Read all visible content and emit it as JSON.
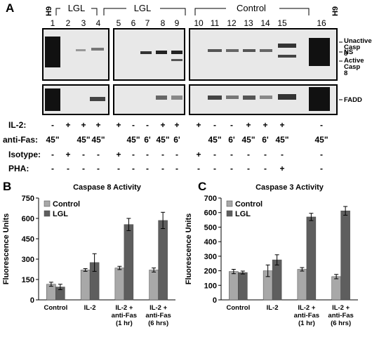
{
  "panelA": {
    "letter": "A",
    "lanes": [
      "1",
      "2",
      "3",
      "4",
      "5",
      "6",
      "7",
      "8",
      "9",
      "10",
      "11",
      "12",
      "13",
      "14",
      "15",
      "16"
    ],
    "h9_left": "H9",
    "h9_right": "H9",
    "groups": [
      "LGL",
      "LGL",
      "Control"
    ],
    "band_labels": [
      "Unactive Casp 8",
      "NS",
      "Active Casp 8",
      "FADD"
    ],
    "rows": [
      {
        "label": "IL-2:",
        "cells": [
          "-",
          "+",
          "+",
          "+",
          "+",
          "-",
          "-",
          "+",
          "+",
          "+",
          "-",
          "-",
          "+",
          "+",
          "+",
          "-"
        ]
      },
      {
        "label": "anti-Fas:",
        "cells": [
          "45\"",
          "",
          "45\"",
          "45\"",
          "",
          "45\"",
          "6'",
          "45\"",
          "6'",
          "",
          "45\"",
          "6'",
          "45\"",
          "6'",
          "45\"",
          "45\""
        ]
      },
      {
        "label": "Isotype:",
        "cells": [
          "-",
          "+",
          "-",
          "-",
          "+",
          "-",
          "-",
          "-",
          "-",
          "+",
          "-",
          "-",
          "-",
          "-",
          "-",
          "-"
        ]
      },
      {
        "label": "PHA:",
        "cells": [
          "-",
          "-",
          "-",
          "-",
          "-",
          "-",
          "-",
          "-",
          "-",
          "-",
          "-",
          "-",
          "-",
          "-",
          "+",
          "-"
        ]
      }
    ]
  },
  "panelB": {
    "letter": "B",
    "chart_data": {
      "type": "bar",
      "title": "Caspase 8 Activity",
      "ylabel": "Fluorescence Units",
      "xlabel": "",
      "ylim": [
        0,
        750
      ],
      "yticks": [
        "0",
        "150",
        "300",
        "450",
        "600",
        "750"
      ],
      "categories": [
        "Control",
        "IL-2",
        "IL-2 + anti-Fas (1 hr)",
        "IL-2 + anti-Fas (6 hrs)"
      ],
      "category_lines": [
        [
          "Control"
        ],
        [
          "IL-2"
        ],
        [
          "IL-2 +",
          "anti-Fas",
          "(1 hr)"
        ],
        [
          "IL-2 +",
          "anti-Fas",
          "(6 hrs)"
        ]
      ],
      "series": [
        {
          "name": "Control",
          "values": [
            115,
            220,
            235,
            220
          ],
          "errors": [
            15,
            10,
            12,
            15
          ],
          "color": "#a8a8a8"
        },
        {
          "name": "LGL",
          "values": [
            95,
            275,
            555,
            585
          ],
          "errors": [
            20,
            65,
            45,
            60
          ],
          "color": "#5e5e5e"
        }
      ],
      "legend": "top-left"
    }
  },
  "panelC": {
    "letter": "C",
    "chart_data": {
      "type": "bar",
      "title": "Caspase 3 Activity",
      "ylabel": "Fluorescence Units",
      "xlabel": "",
      "ylim": [
        0,
        700
      ],
      "yticks": [
        "0",
        "100",
        "200",
        "300",
        "400",
        "500",
        "600",
        "700"
      ],
      "categories": [
        "Control",
        "IL-2",
        "IL-2 + anti-Fas (1 hr)",
        "IL-2 + anti-Fas (6 hrs)"
      ],
      "category_lines": [
        [
          "Control"
        ],
        [
          "IL-2"
        ],
        [
          "IL-2 +",
          "anti-Fas",
          "(1 hr)"
        ],
        [
          "IL-2 +",
          "anti-Fas",
          "(6 hrs)"
        ]
      ],
      "series": [
        {
          "name": "Control",
          "values": [
            195,
            200,
            210,
            160
          ],
          "errors": [
            15,
            40,
            12,
            15
          ],
          "color": "#a8a8a8"
        },
        {
          "name": "LGL",
          "values": [
            188,
            275,
            570,
            612
          ],
          "errors": [
            10,
            35,
            25,
            30
          ],
          "color": "#5e5e5e"
        }
      ],
      "legend": "top-left"
    }
  }
}
